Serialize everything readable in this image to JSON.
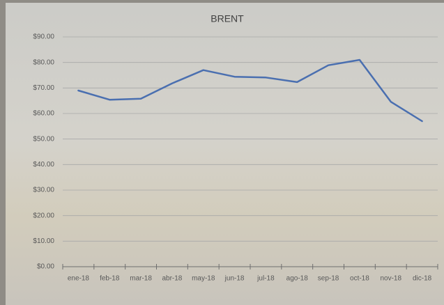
{
  "chart_data": {
    "type": "line",
    "title": "BRENT",
    "categories": [
      "ene-18",
      "feb-18",
      "mar-18",
      "abr-18",
      "may-18",
      "jun-18",
      "jul-18",
      "ago-18",
      "sep-18",
      "oct-18",
      "nov-18",
      "dic-18"
    ],
    "values": [
      69,
      65.4,
      65.8,
      71.8,
      77,
      74.4,
      74.1,
      72.3,
      78.9,
      81,
      64.6,
      57
    ],
    "color": "#4a6fb0",
    "ylim": [
      0,
      90
    ],
    "yticks": [
      {
        "value": 0,
        "label": "$0.00"
      },
      {
        "value": 10,
        "label": "$10.00"
      },
      {
        "value": 20,
        "label": "$20.00"
      },
      {
        "value": 30,
        "label": "$30.00"
      },
      {
        "value": 40,
        "label": "$40.00"
      },
      {
        "value": 50,
        "label": "$50.00"
      },
      {
        "value": 60,
        "label": "$60.00"
      },
      {
        "value": 70,
        "label": "$70.00"
      },
      {
        "value": 80,
        "label": "$80.00"
      },
      {
        "value": 90,
        "label": "$90.00"
      }
    ],
    "grid": true
  }
}
